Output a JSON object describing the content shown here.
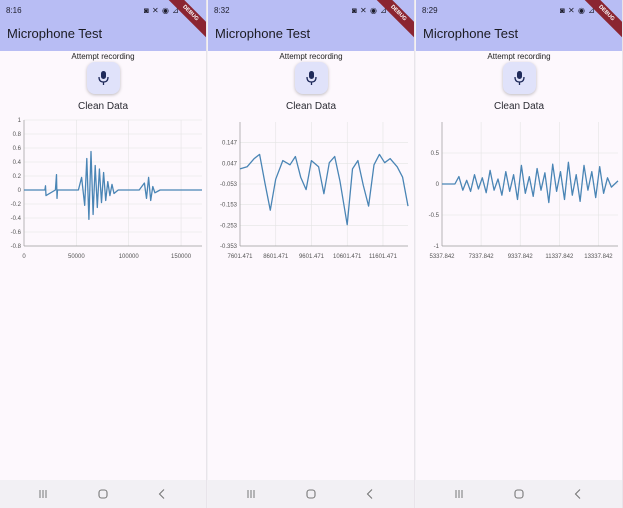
{
  "screens": [
    {
      "status": {
        "time": "8:16",
        "icons": "◙ ✕ ◉ ⊿ 58"
      },
      "ribbon": "DEBUG",
      "app_title": "Microphone Test",
      "record_label": "Attempt recording",
      "mic_icon": "mic-icon",
      "nav_icons": [
        "recents-icon",
        "home-icon",
        "back-icon"
      ]
    },
    {
      "status": {
        "time": "8:32",
        "icons": "◙ ✕ ◉ ⊿ 52"
      },
      "ribbon": "DEBUG",
      "app_title": "Microphone Test",
      "record_label": "Attempt recording",
      "mic_icon": "mic-icon",
      "nav_icons": [
        "recents-icon",
        "home-icon",
        "back-icon"
      ]
    },
    {
      "status": {
        "time": "8:29",
        "icons": "◙ ✕ ◉ ⊿ 53"
      },
      "ribbon": "DEBUG",
      "app_title": "Microphone Test",
      "record_label": "Attempt recording",
      "mic_icon": "mic-icon",
      "nav_icons": [
        "recents-icon",
        "home-icon",
        "back-icon"
      ]
    }
  ],
  "colors": {
    "line": "#4a85b5",
    "appbar": "#b8bdf4",
    "grid": "#e4e4e4",
    "axis": "#9e9e9e"
  },
  "chart_data": [
    {
      "type": "line",
      "title": "Clean Data",
      "xlim": [
        0,
        170000
      ],
      "ylim": [
        -0.8,
        1
      ],
      "x_ticks": [
        "0",
        "50000",
        "100000",
        "150000"
      ],
      "x_tick_values": [
        0,
        50000,
        100000,
        150000
      ],
      "y_ticks": [
        "1",
        "0.8",
        "0.6",
        "0.4",
        "0.2",
        "0",
        "-0.2",
        "-0.4",
        "-0.6",
        "-0.8"
      ],
      "y_tick_values": [
        1,
        0.8,
        0.6,
        0.4,
        0.2,
        0,
        -0.2,
        -0.4,
        -0.6,
        -0.8
      ],
      "grid": true,
      "series": [
        {
          "x": [
            0,
            20000,
            20500,
            21000,
            30000,
            31000,
            31500,
            32000,
            52000,
            55000,
            58000,
            60000,
            62000,
            64000,
            66000,
            68000,
            70000,
            72000,
            74000,
            76000,
            78000,
            80000,
            82000,
            84000,
            86000,
            90000,
            100000,
            110000,
            115000,
            117000,
            119000,
            121000,
            123000,
            125000,
            130000,
            150000,
            170000
          ],
          "y": [
            0,
            0,
            0.06,
            -0.08,
            0,
            0.22,
            -0.12,
            0,
            0,
            0.18,
            -0.22,
            0.45,
            -0.42,
            0.55,
            -0.35,
            0.35,
            -0.25,
            0.3,
            -0.18,
            0.25,
            -0.15,
            0.12,
            -0.08,
            0.08,
            -0.05,
            0,
            0,
            0,
            0.1,
            -0.12,
            0.18,
            -0.15,
            0.05,
            -0.04,
            0,
            0,
            0
          ]
        }
      ]
    },
    {
      "type": "line",
      "title": "Clean Data",
      "xlim": [
        7601.471,
        12301.471
      ],
      "ylim": [
        -0.353,
        0.247
      ],
      "x_ticks": [
        "7601.471",
        "8601.471",
        "9601.471",
        "10601.471",
        "11601.471"
      ],
      "x_tick_values": [
        7601.471,
        8601.471,
        9601.471,
        10601.471,
        11601.471
      ],
      "y_ticks": [
        "0.147",
        "0.047",
        "-0.053",
        "-0.153",
        "-0.253",
        "-0.353"
      ],
      "y_tick_values": [
        0.147,
        0.047,
        -0.053,
        -0.153,
        -0.253,
        -0.353
      ],
      "grid": true,
      "series": [
        {
          "x": [
            7601.471,
            7800,
            8000,
            8150,
            8300,
            8450,
            8600,
            8800,
            9000,
            9150,
            9300,
            9450,
            9600,
            9800,
            9950,
            10100,
            10250,
            10400,
            10600,
            10750,
            10900,
            11050,
            11200,
            11350,
            11500,
            11650,
            11800,
            12000,
            12150,
            12301.471
          ],
          "y": [
            0.02,
            0.03,
            0.07,
            0.09,
            -0.05,
            -0.18,
            -0.03,
            0.06,
            0.04,
            0.08,
            -0.02,
            -0.08,
            0.06,
            0.03,
            -0.1,
            0.05,
            0.08,
            -0.04,
            -0.25,
            0.02,
            0.06,
            -0.06,
            -0.16,
            0.04,
            0.09,
            0.05,
            0.07,
            0.03,
            -0.02,
            -0.16
          ]
        }
      ]
    },
    {
      "type": "line",
      "title": "Clean Data",
      "xlim": [
        5337.842,
        14337.842
      ],
      "ylim": [
        -1,
        1
      ],
      "x_ticks": [
        "5337.842",
        "7337.842",
        "9337.842",
        "11337.842",
        "13337.842"
      ],
      "x_tick_values": [
        5337.842,
        7337.842,
        9337.842,
        11337.842,
        13337.842
      ],
      "y_ticks": [
        "0.5",
        "0",
        "-0.5",
        "-1"
      ],
      "y_tick_values": [
        0.5,
        0,
        -0.5,
        -1
      ],
      "grid": true,
      "series": [
        {
          "x": [
            5337.842,
            6000,
            6200,
            6400,
            6600,
            6800,
            7000,
            7200,
            7400,
            7600,
            7800,
            8000,
            8200,
            8400,
            8600,
            8800,
            9000,
            9200,
            9400,
            9600,
            9800,
            10000,
            10200,
            10400,
            10600,
            10800,
            11000,
            11200,
            11400,
            11600,
            11800,
            12000,
            12200,
            12400,
            12600,
            12800,
            13000,
            13200,
            13400,
            13600,
            13800,
            14000,
            14337.842
          ],
          "y": [
            0,
            0,
            0.12,
            -0.1,
            0.06,
            -0.12,
            0.15,
            -0.08,
            0.1,
            -0.14,
            0.22,
            -0.1,
            0.08,
            -0.18,
            0.2,
            -0.12,
            0.15,
            -0.25,
            0.3,
            -0.15,
            0.12,
            -0.2,
            0.25,
            -0.1,
            0.18,
            -0.3,
            0.32,
            -0.12,
            0.2,
            -0.25,
            0.35,
            -0.18,
            0.15,
            -0.28,
            0.3,
            -0.1,
            0.2,
            -0.22,
            0.28,
            -0.15,
            0.1,
            -0.05,
            0.05
          ]
        }
      ]
    }
  ]
}
